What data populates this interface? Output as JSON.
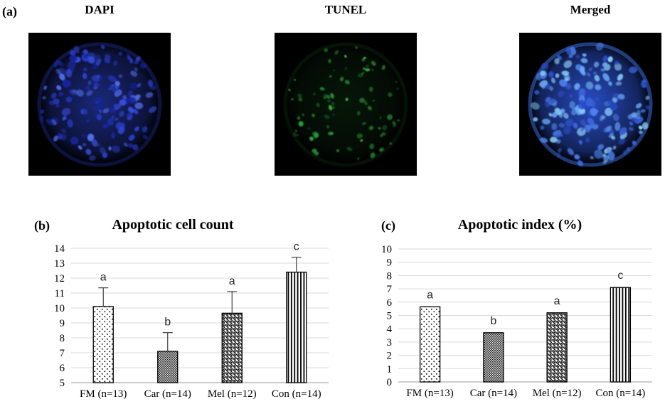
{
  "panel_a": {
    "label": "(a)",
    "micrographs": [
      {
        "title": "DAPI",
        "seed": 11,
        "bg": "#000000",
        "sphere_inner": "#1c2a80",
        "sphere_outer": "#04061c",
        "edge_ring": "rgba(40,60,190,0.28)",
        "dot_colors": [
          "#2438c8",
          "#3a52e6",
          "#16249e",
          "#5572f0",
          "#2d44d8"
        ],
        "dot_count": 150,
        "dot_r": [
          2.5,
          6.5
        ],
        "dot_opacity": [
          0.35,
          0.95
        ]
      },
      {
        "title": "TUNEL",
        "seed": 23,
        "bg": "#000000",
        "sphere_inner": "#07180a",
        "sphere_outer": "#010401",
        "edge_ring": "rgba(30,90,35,0.18)",
        "dot_colors": [
          "#1e7a2a",
          "#2fa83c",
          "#49d158",
          "#135c1c",
          "#27963a"
        ],
        "dot_count": 85,
        "dot_r": [
          1.4,
          4.2
        ],
        "dot_opacity": [
          0.3,
          1.0
        ]
      },
      {
        "title": "Merged",
        "seed": 5,
        "bg": "#000000",
        "sphere_inner": "#2a50cc",
        "sphere_outer": "#081038",
        "edge_ring": "rgba(70,130,255,0.42)",
        "dot_colors": [
          "#4d82ee",
          "#6aa8f8",
          "#3a62da",
          "#8fd4ff",
          "#2c4fd0"
        ],
        "dot_count": 165,
        "dot_r": [
          2.5,
          6.5
        ],
        "dot_opacity": [
          0.45,
          1.0
        ]
      }
    ]
  },
  "chart_data": [
    {
      "type": "bar",
      "panel_label": "(b)",
      "title": "Apoptotic cell count",
      "categories": [
        "FM (n=13)",
        "Car (n=14)",
        "Mel (n=12)",
        "Con (n=14)"
      ],
      "values": [
        10.1,
        7.1,
        9.65,
        12.4
      ],
      "error_upper": [
        1.25,
        1.25,
        1.45,
        1.0
      ],
      "sig_letters": [
        "a",
        "b",
        "a",
        "c"
      ],
      "ylim": [
        5,
        14
      ],
      "ytick_step": 1,
      "xlabel": "",
      "ylabel": "",
      "grid": true,
      "legend": "none",
      "bar_fill_patterns": [
        "dots",
        "checker",
        "diagonal-stripes",
        "vertical-stripes"
      ],
      "colors": {
        "bar_stroke": "#000000",
        "pattern_ink": "#000000",
        "bar_bg": "#ffffff",
        "gridline": "#d9d9d9",
        "axis_line": "#9b9b9b",
        "error_bar": "#404040",
        "text": "#000000"
      }
    },
    {
      "type": "bar",
      "panel_label": "(c)",
      "title": "Apoptotic index (%)",
      "categories": [
        "FM (n=13)",
        "Car (n=14)",
        "Mel (n=12)",
        "Con (n=14)"
      ],
      "values": [
        5.65,
        3.7,
        5.2,
        7.1
      ],
      "error_upper": null,
      "sig_letters": [
        "a",
        "b",
        "a",
        "c"
      ],
      "ylim": [
        0,
        10
      ],
      "ytick_step": 1,
      "xlabel": "",
      "ylabel": "",
      "grid": true,
      "legend": "none",
      "bar_fill_patterns": [
        "dots",
        "checker",
        "diagonal-stripes",
        "vertical-stripes"
      ],
      "colors": {
        "bar_stroke": "#000000",
        "pattern_ink": "#000000",
        "bar_bg": "#ffffff",
        "gridline": "#d9d9d9",
        "axis_line": "#9b9b9b",
        "error_bar": "#404040",
        "text": "#000000"
      }
    }
  ]
}
